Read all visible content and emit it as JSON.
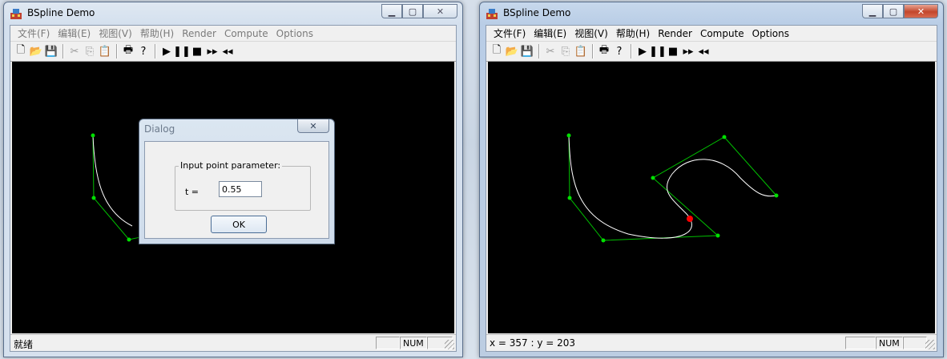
{
  "left_window": {
    "title": "BSpline Demo",
    "menu": [
      "文件(F)",
      "编辑(E)",
      "视图(V)",
      "帮助(H)",
      "Render",
      "Compute",
      "Options"
    ],
    "status_text": "就绪",
    "status_num": "NUM",
    "dialog": {
      "title": "Dialog",
      "close_label": "✕",
      "group_label": "Input point parameter:",
      "t_label": "t =",
      "t_value": "0.55",
      "ok_label": "OK"
    }
  },
  "right_window": {
    "title": "BSpline Demo",
    "menu": [
      "文件(F)",
      "编辑(E)",
      "视图(V)",
      "帮助(H)",
      "Render",
      "Compute",
      "Options"
    ],
    "status_text": "x = 357 : y = 203",
    "status_num": "NUM"
  },
  "toolbar_icons": [
    "new-icon",
    "open-icon",
    "save-icon",
    "cut-icon",
    "copy-icon",
    "paste-icon",
    "print-icon",
    "help-icon",
    "play-icon",
    "pause-icon",
    "stop-icon",
    "fast-forward-icon",
    "rewind-icon"
  ],
  "colors": {
    "control_polygon": "#00c000",
    "curve": "#ffffff",
    "evaluated_point": "#ff0000",
    "canvas": "#000000"
  }
}
